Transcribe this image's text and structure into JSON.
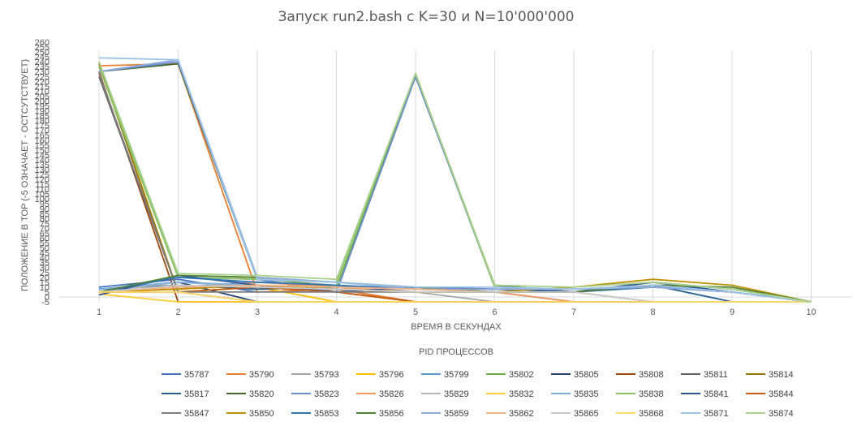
{
  "chart_data": {
    "type": "line",
    "title": "Запуск run2.bash с K=30 и N=10'000'000",
    "xlabel": "ВРЕМЯ В СЕКУНДАХ",
    "ylabel": "ПОЛОЖЕНИЕ В TOP (-5 ОЗНАЧАЕТ - ОСТСУТСТВУЕТ)",
    "legend_title": "PID ПРОЦЕССОВ",
    "legend_position": "bottom",
    "x": [
      "1",
      "2",
      "3",
      "4",
      "5",
      "6",
      "7",
      "8",
      "9",
      "10"
    ],
    "ylim": [
      -5,
      260
    ],
    "yticks": [
      -5,
      0,
      5,
      10,
      15,
      20,
      25,
      30,
      35,
      40,
      45,
      50,
      55,
      60,
      65,
      70,
      75,
      80,
      85,
      90,
      95,
      100,
      105,
      110,
      115,
      120,
      125,
      130,
      135,
      140,
      145,
      150,
      155,
      160,
      165,
      170,
      175,
      180,
      185,
      190,
      195,
      200,
      205,
      210,
      215,
      220,
      225,
      230,
      235,
      240,
      245,
      250,
      255,
      260
    ],
    "grid": "vertical",
    "series": [
      {
        "name": "35787",
        "color": "#4472C4",
        "values": [
          10,
          18,
          5,
          8,
          -5,
          -5,
          -5,
          -5,
          -5,
          -5
        ]
      },
      {
        "name": "35790",
        "color": "#ED7D31",
        "values": [
          236,
          238,
          5,
          8,
          -5,
          -5,
          -5,
          -5,
          -5,
          -5
        ]
      },
      {
        "name": "35793",
        "color": "#A5A5A5",
        "values": [
          5,
          20,
          18,
          12,
          5,
          -5,
          -5,
          -5,
          -5,
          -5
        ]
      },
      {
        "name": "35796",
        "color": "#FFC000",
        "values": [
          240,
          5,
          10,
          -5,
          -5,
          -5,
          -5,
          -5,
          -5,
          -5
        ]
      },
      {
        "name": "35799",
        "color": "#5B9BD5",
        "values": [
          5,
          10,
          15,
          12,
          5,
          5,
          -5,
          -5,
          -5,
          -5
        ]
      },
      {
        "name": "35802",
        "color": "#70AD47",
        "values": [
          240,
          22,
          20,
          10,
          225,
          12,
          5,
          15,
          5,
          -5
        ]
      },
      {
        "name": "35805",
        "color": "#264478",
        "values": [
          8,
          15,
          -5,
          -5,
          -5,
          -5,
          -5,
          -5,
          -5,
          -5
        ]
      },
      {
        "name": "35808",
        "color": "#9E480E",
        "values": [
          230,
          -5,
          -5,
          -5,
          -5,
          -5,
          -5,
          -5,
          -5,
          -5
        ]
      },
      {
        "name": "35811",
        "color": "#636363",
        "values": [
          225,
          5,
          -5,
          -5,
          -5,
          -5,
          -5,
          -5,
          -5,
          -5
        ]
      },
      {
        "name": "35814",
        "color": "#997300",
        "values": [
          238,
          5,
          10,
          5,
          -5,
          -5,
          -5,
          -5,
          -5,
          -5
        ]
      },
      {
        "name": "35817",
        "color": "#255E91",
        "values": [
          8,
          12,
          8,
          10,
          10,
          5,
          5,
          12,
          -5,
          -5
        ]
      },
      {
        "name": "35820",
        "color": "#43682B",
        "values": [
          230,
          238,
          18,
          5,
          225,
          12,
          5,
          15,
          8,
          -5
        ]
      },
      {
        "name": "35823",
        "color": "#698ED0",
        "values": [
          230,
          240,
          18,
          5,
          225,
          10,
          5,
          12,
          5,
          -5
        ]
      },
      {
        "name": "35826",
        "color": "#F1975A",
        "values": [
          5,
          8,
          15,
          10,
          5,
          5,
          -5,
          -5,
          -5,
          -5
        ]
      },
      {
        "name": "35829",
        "color": "#B7B7B7",
        "values": [
          5,
          15,
          10,
          8,
          5,
          5,
          5,
          -5,
          -5,
          -5
        ]
      },
      {
        "name": "35832",
        "color": "#FFCD33",
        "values": [
          3,
          -5,
          -5,
          -5,
          -5,
          -5,
          -5,
          -5,
          -5,
          -5
        ]
      },
      {
        "name": "35835",
        "color": "#7CAFDD",
        "values": [
          8,
          15,
          12,
          10,
          8,
          8,
          5,
          -5,
          -5,
          -5
        ]
      },
      {
        "name": "35838",
        "color": "#8CC168",
        "values": [
          235,
          20,
          18,
          15,
          228,
          10,
          8,
          12,
          5,
          -5
        ]
      },
      {
        "name": "35841",
        "color": "#2F5597",
        "values": [
          2,
          22,
          12,
          5,
          10,
          8,
          5,
          15,
          5,
          -5
        ]
      },
      {
        "name": "35844",
        "color": "#C55A11",
        "values": [
          5,
          5,
          10,
          5,
          -5,
          -5,
          -5,
          -5,
          -5,
          -5
        ]
      },
      {
        "name": "35847",
        "color": "#7F7F7F",
        "values": [
          228,
          5,
          5,
          5,
          5,
          5,
          5,
          10,
          5,
          -5
        ]
      },
      {
        "name": "35850",
        "color": "#BF9000",
        "values": [
          5,
          8,
          12,
          8,
          5,
          5,
          10,
          18,
          12,
          -5
        ]
      },
      {
        "name": "35853",
        "color": "#2E75B6",
        "values": [
          5,
          20,
          15,
          12,
          8,
          5,
          5,
          10,
          5,
          -5
        ]
      },
      {
        "name": "35856",
        "color": "#548235",
        "values": [
          5,
          22,
          20,
          15,
          10,
          5,
          5,
          12,
          10,
          -5
        ]
      },
      {
        "name": "35859",
        "color": "#8FAADC",
        "values": [
          230,
          242,
          20,
          15,
          8,
          8,
          8,
          10,
          5,
          -5
        ]
      },
      {
        "name": "35862",
        "color": "#F4B183",
        "values": [
          5,
          10,
          12,
          10,
          8,
          5,
          5,
          -5,
          -5,
          -5
        ]
      },
      {
        "name": "35865",
        "color": "#C9C9C9",
        "values": [
          5,
          12,
          10,
          8,
          5,
          5,
          5,
          -5,
          -5,
          -5
        ]
      },
      {
        "name": "35868",
        "color": "#FFD966",
        "values": [
          5,
          5,
          -5,
          -5,
          -5,
          -5,
          -5,
          -5,
          -5,
          -5
        ]
      },
      {
        "name": "35871",
        "color": "#9DC3E6",
        "values": [
          244,
          242,
          18,
          15,
          10,
          10,
          8,
          12,
          5,
          -5
        ]
      },
      {
        "name": "35874",
        "color": "#A9D18E",
        "values": [
          240,
          24,
          22,
          18,
          228,
          12,
          10,
          15,
          8,
          -5
        ]
      }
    ]
  }
}
